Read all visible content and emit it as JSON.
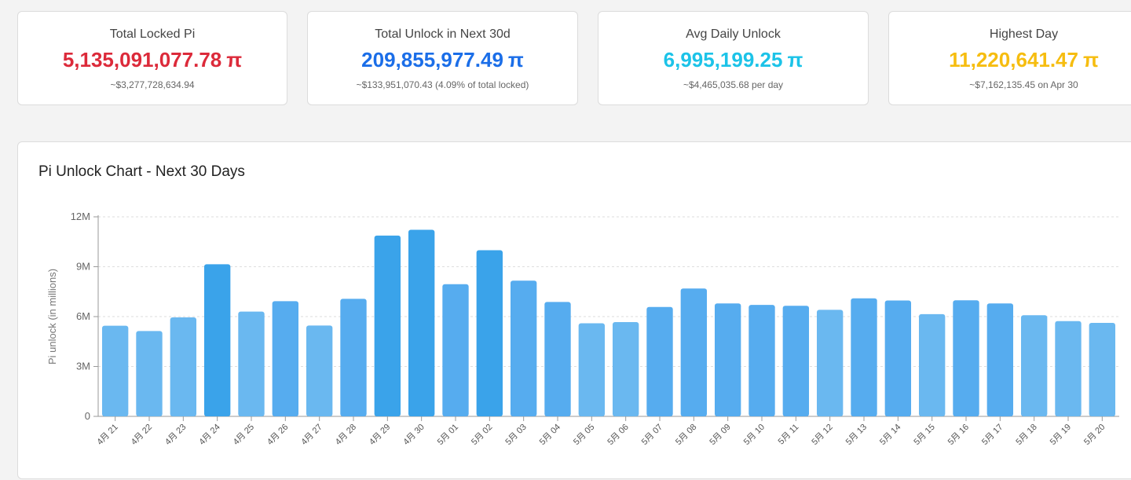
{
  "cards": [
    {
      "label": "Total Locked Pi",
      "value": "5,135,091,077.78",
      "unit": "π",
      "sub": "~$3,277,728,634.94",
      "color": "#dc2a3a"
    },
    {
      "label": "Total Unlock in Next 30d",
      "value": "209,855,977.49",
      "unit": "π",
      "sub": "~$133,951,070.43 (4.09% of total locked)",
      "color": "#1b6ee8"
    },
    {
      "label": "Avg Daily Unlock",
      "value": "6,995,199.25",
      "unit": "π",
      "sub": "~$4,465,035.68 per day",
      "color": "#1cc3e8"
    },
    {
      "label": "Highest Day",
      "value": "11,220,641.47",
      "unit": "π",
      "sub": "~$7,162,135.45 on Apr 30",
      "color": "#f6bd10"
    }
  ],
  "chart_data": {
    "type": "bar",
    "title": "Pi Unlock Chart - Next 30 Days",
    "ylabel": "Pi unlock (in millions)",
    "xlabel": "",
    "ylim": [
      0,
      12000000
    ],
    "y_ticks": [
      {
        "value": 0,
        "label": "0"
      },
      {
        "value": 3000000,
        "label": "3M"
      },
      {
        "value": 6000000,
        "label": "6M"
      },
      {
        "value": 9000000,
        "label": "9M"
      },
      {
        "value": 12000000,
        "label": "12M"
      }
    ],
    "grid": true,
    "categories": [
      "4月 21",
      "4月 22",
      "4月 23",
      "4月 24",
      "4月 25",
      "4月 26",
      "4月 27",
      "4月 28",
      "4月 29",
      "4月 30",
      "5月 01",
      "5月 02",
      "5月 03",
      "5月 04",
      "5月 05",
      "5月 06",
      "5月 07",
      "5月 08",
      "5月 09",
      "5月 10",
      "5月 11",
      "5月 12",
      "5月 13",
      "5月 14",
      "5月 15",
      "5月 16",
      "5月 17",
      "5月 18",
      "5月 19",
      "5月 20"
    ],
    "values": [
      5450000,
      5130000,
      5950000,
      9150000,
      6300000,
      6930000,
      5460000,
      7070000,
      10870000,
      11220641,
      7950000,
      9990000,
      8160000,
      6880000,
      5600000,
      5670000,
      6580000,
      7690000,
      6790000,
      6700000,
      6650000,
      6410000,
      7100000,
      6970000,
      6150000,
      6980000,
      6790000,
      6080000,
      5730000,
      5620000
    ],
    "colors": {
      "light": "#6ab8f0",
      "mid": "#56acef",
      "dark": "#3aa3ea"
    }
  }
}
